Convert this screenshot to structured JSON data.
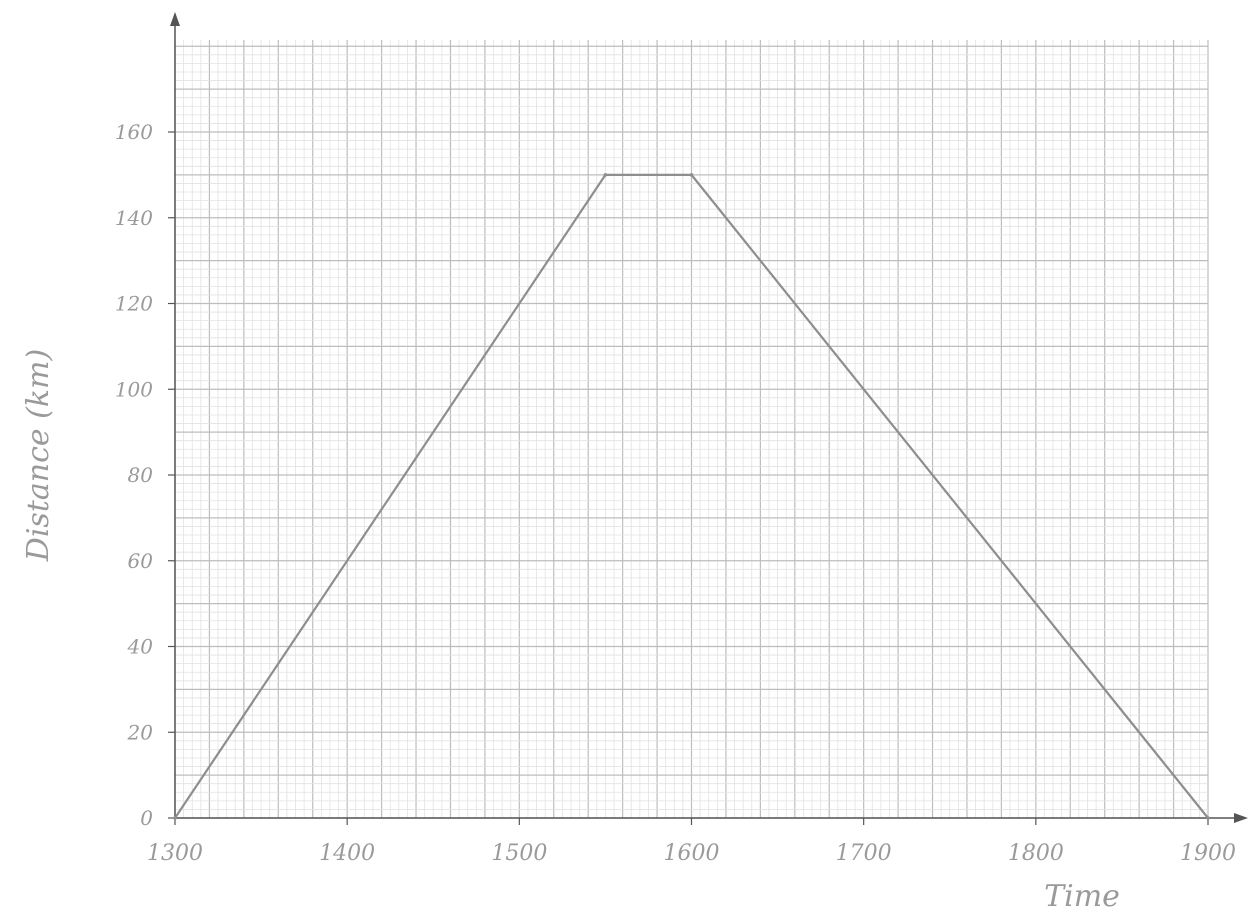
{
  "chart_data": {
    "type": "line",
    "xlabel": "Time",
    "ylabel": "Distance (km)",
    "x_tick_labels": [
      "1300",
      "1400",
      "1500",
      "1600",
      "1700",
      "1800",
      "1900"
    ],
    "y_tick_labels": [
      "0",
      "20",
      "40",
      "60",
      "80",
      "100",
      "120",
      "140",
      "160"
    ],
    "x_ticks": [
      1300,
      1400,
      1500,
      1600,
      1700,
      1800,
      1900
    ],
    "y_ticks": [
      0,
      20,
      40,
      60,
      80,
      100,
      120,
      140,
      160
    ],
    "xlim": [
      1300,
      1900
    ],
    "ylim": [
      0,
      160
    ],
    "grid": true,
    "series": [
      {
        "x": [
          1300,
          1550,
          1600,
          1900
        ],
        "y": [
          0,
          150,
          150,
          0
        ]
      }
    ],
    "colors": {
      "grid_major": "#bdbdbd",
      "grid_minor": "#e2e2e2",
      "axis": "#555555",
      "line": "#8e8e8e",
      "text": "#9a9a9a"
    }
  }
}
